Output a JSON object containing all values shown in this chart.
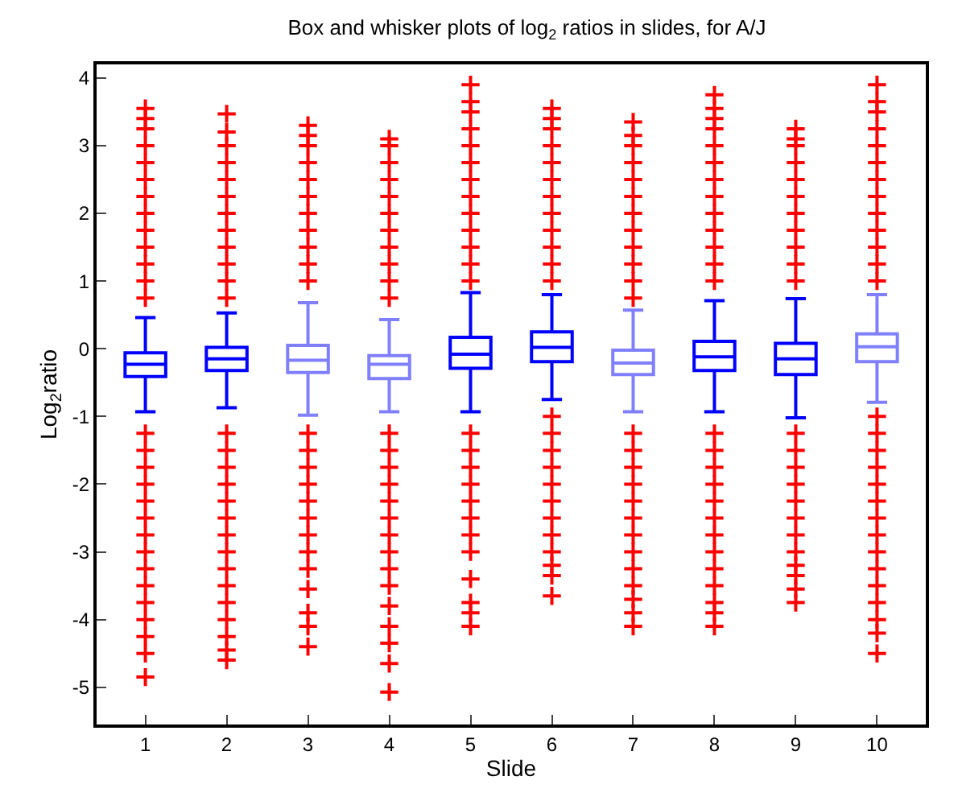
{
  "chart_data": {
    "type": "box",
    "title": "Box and whisker plots of log$_{2}$ ratios in slides, for A/J",
    "xlabel": "Slide",
    "ylabel": "Log$_{2}$ratio",
    "categories": [
      "1",
      "2",
      "3",
      "4",
      "5",
      "6",
      "7",
      "8",
      "9",
      "10"
    ],
    "marker": "cross",
    "ylim": [
      -5.55,
      4.2
    ],
    "yticks": [
      -5,
      -4,
      -3,
      -2,
      -1,
      0,
      1,
      2,
      3,
      4
    ],
    "series": [
      {
        "color": "#ff0000",
        "colors": [
          "#0000ff",
          "#0000ff",
          "#8080ff",
          "#8080ff",
          "#0000ff",
          "#0000ff",
          "#8080ff",
          "#0000ff",
          "#0000ff",
          "#8080ff"
        ],
        "boxes": [
          {
            "low": -0.93,
            "q1": -0.41,
            "median": -0.23,
            "q3": -0.06,
            "high": 0.46,
            "outliers": [
              0.75,
              1.0,
              1.25,
              1.5,
              1.75,
              2.0,
              2.25,
              2.5,
              2.75,
              3.0,
              3.25,
              3.4,
              3.55,
              -1.25,
              -1.5,
              -1.75,
              -2.0,
              -2.25,
              -2.5,
              -2.75,
              -3.0,
              -3.25,
              -3.5,
              -3.75,
              -4.0,
              -4.25,
              -4.5,
              -4.85
            ]
          },
          {
            "low": -0.87,
            "q1": -0.32,
            "median": -0.15,
            "q3": 0.02,
            "high": 0.53,
            "outliers": [
              0.75,
              1.0,
              1.25,
              1.5,
              1.75,
              2.0,
              2.25,
              2.5,
              2.75,
              3.0,
              3.2,
              3.47,
              -1.25,
              -1.5,
              -1.75,
              -2.0,
              -2.25,
              -2.5,
              -2.75,
              -3.0,
              -3.25,
              -3.5,
              -3.75,
              -4.0,
              -4.25,
              -4.45,
              -4.6
            ]
          },
          {
            "low": -0.98,
            "q1": -0.35,
            "median": -0.17,
            "q3": 0.05,
            "high": 0.68,
            "outliers": [
              1.0,
              1.25,
              1.5,
              1.75,
              2.0,
              2.25,
              2.5,
              2.75,
              3.0,
              3.15,
              3.3,
              -1.25,
              -1.5,
              -1.75,
              -2.0,
              -2.25,
              -2.5,
              -2.75,
              -3.0,
              -3.25,
              -3.55,
              -3.9,
              -4.1,
              -4.4
            ]
          },
          {
            "low": -0.93,
            "q1": -0.44,
            "median": -0.23,
            "q3": -0.1,
            "high": 0.43,
            "outliers": [
              0.75,
              1.0,
              1.25,
              1.5,
              1.75,
              2.0,
              2.25,
              2.5,
              2.75,
              3.0,
              3.1,
              -1.25,
              -1.5,
              -1.75,
              -2.0,
              -2.25,
              -2.5,
              -2.75,
              -3.0,
              -3.25,
              -3.5,
              -3.8,
              -4.1,
              -4.35,
              -4.65,
              -5.07
            ]
          },
          {
            "low": -0.93,
            "q1": -0.29,
            "median": -0.08,
            "q3": 0.17,
            "high": 0.83,
            "outliers": [
              1.0,
              1.25,
              1.5,
              1.75,
              2.0,
              2.25,
              2.5,
              2.75,
              3.0,
              3.25,
              3.5,
              3.65,
              3.9,
              -1.25,
              -1.5,
              -1.75,
              -2.0,
              -2.25,
              -2.5,
              -2.75,
              -3.0,
              -3.4,
              -3.75,
              -3.9,
              -4.1
            ]
          },
          {
            "low": -0.75,
            "q1": -0.19,
            "median": 0.02,
            "q3": 0.25,
            "high": 0.8,
            "outliers": [
              1.0,
              1.25,
              1.5,
              1.75,
              2.0,
              2.25,
              2.5,
              2.75,
              3.0,
              3.25,
              3.4,
              3.55,
              -1.0,
              -1.25,
              -1.5,
              -1.75,
              -2.0,
              -2.25,
              -2.5,
              -2.75,
              -3.0,
              -3.2,
              -3.35,
              -3.65
            ]
          },
          {
            "low": -0.93,
            "q1": -0.38,
            "median": -0.21,
            "q3": -0.02,
            "high": 0.57,
            "outliers": [
              0.75,
              1.0,
              1.25,
              1.5,
              1.75,
              2.0,
              2.25,
              2.5,
              2.75,
              3.0,
              3.15,
              3.35,
              -1.25,
              -1.5,
              -1.75,
              -2.0,
              -2.25,
              -2.5,
              -2.75,
              -3.0,
              -3.25,
              -3.5,
              -3.7,
              -3.9,
              -4.1
            ]
          },
          {
            "low": -0.93,
            "q1": -0.32,
            "median": -0.12,
            "q3": 0.11,
            "high": 0.71,
            "outliers": [
              1.0,
              1.25,
              1.5,
              1.75,
              2.0,
              2.25,
              2.5,
              2.75,
              3.0,
              3.25,
              3.4,
              3.55,
              3.75,
              -1.25,
              -1.5,
              -1.75,
              -2.0,
              -2.25,
              -2.5,
              -2.75,
              -3.0,
              -3.25,
              -3.5,
              -3.75,
              -3.9,
              -4.1
            ]
          },
          {
            "low": -1.02,
            "q1": -0.38,
            "median": -0.15,
            "q3": 0.08,
            "high": 0.74,
            "outliers": [
              1.0,
              1.25,
              1.5,
              1.75,
              2.0,
              2.25,
              2.5,
              2.75,
              3.0,
              3.1,
              3.25,
              -1.25,
              -1.5,
              -1.75,
              -2.0,
              -2.25,
              -2.5,
              -2.75,
              -3.0,
              -3.2,
              -3.35,
              -3.55,
              -3.75
            ]
          },
          {
            "low": -0.79,
            "q1": -0.19,
            "median": 0.03,
            "q3": 0.22,
            "high": 0.8,
            "outliers": [
              1.0,
              1.25,
              1.5,
              1.75,
              2.0,
              2.25,
              2.5,
              2.75,
              3.0,
              3.25,
              3.5,
              3.65,
              3.9,
              -1.0,
              -1.25,
              -1.5,
              -1.75,
              -2.0,
              -2.25,
              -2.5,
              -2.75,
              -3.0,
              -3.25,
              -3.5,
              -3.75,
              -4.0,
              -4.2,
              -4.5
            ]
          }
        ]
      }
    ]
  }
}
